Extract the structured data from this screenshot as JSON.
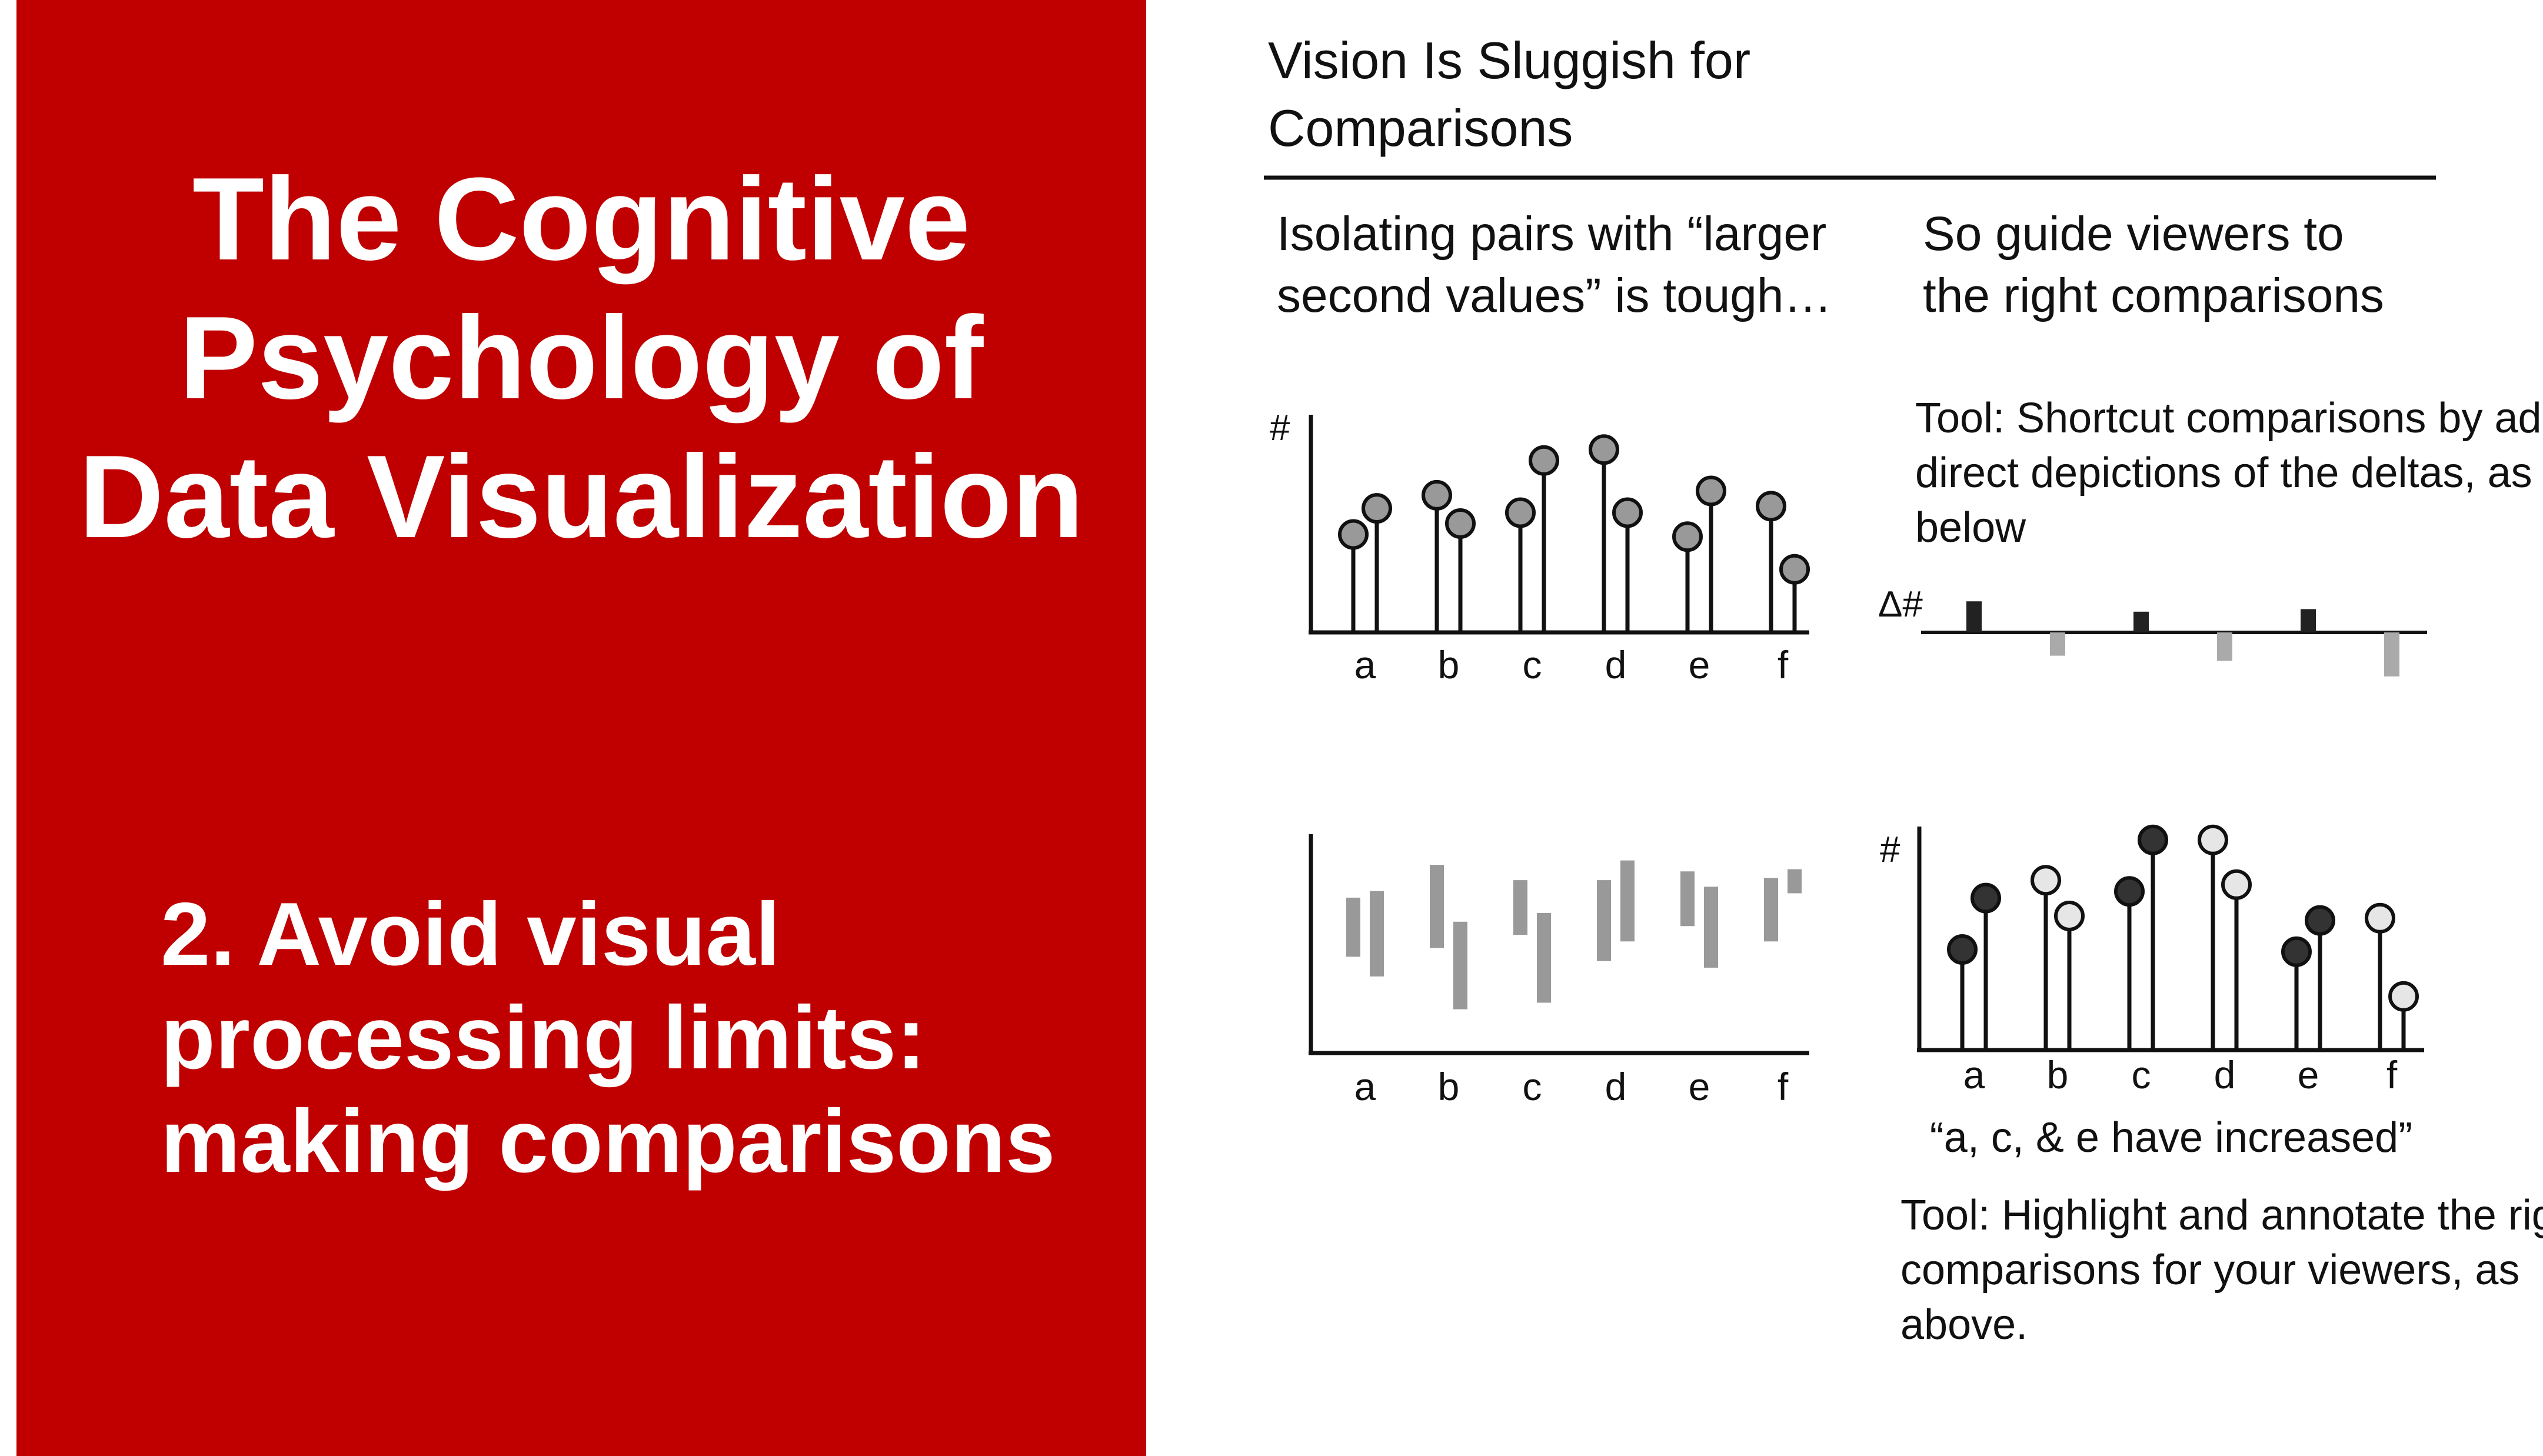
{
  "slide": {
    "title_lines": [
      "The Cognitive",
      "Psychology of",
      "Data Visualization"
    ],
    "subtitle_lines": [
      "2. Avoid visual",
      "processing limits:",
      "making comparisons"
    ]
  },
  "figure": {
    "heading_lines": [
      "Vision Is Sluggish for",
      "Comparisons"
    ],
    "left_caption_lines": [
      "Isolating pairs with “larger",
      "second values” is tough…"
    ],
    "right_caption_lines": [
      "So guide viewers to",
      "the right comparisons"
    ],
    "tool1_lines": [
      "Tool: Shortcut comparisons by adding",
      "direct depictions of the deltas, as",
      "below"
    ],
    "tool2_lines": [
      "Tool: Highlight and annotate the right",
      "comparisons for your viewers, as",
      "above."
    ],
    "quote": "“a, c, & e have increased”",
    "y_symbol": "#",
    "delta_symbol": "Δ#",
    "colors": {
      "accent_red": "#c00000",
      "dot_neutral": "#999999",
      "dot_dark": "#333333",
      "dot_light": "#e6e6e6",
      "bar_gray": "#999999",
      "delta_up": "#222222",
      "delta_down": "#aaaaaa"
    }
  },
  "chart_data": [
    {
      "type": "scatter",
      "title": "",
      "ylabel": "#",
      "categories": [
        "a",
        "b",
        "c",
        "d",
        "e",
        "f"
      ],
      "series": [
        {
          "values": [
            45,
            63,
            55,
            84,
            44,
            58
          ]
        },
        {
          "values": [
            57,
            50,
            79,
            55,
            65,
            29
          ]
        }
      ]
    },
    {
      "type": "bar",
      "title": "",
      "categories": [
        "a",
        "b",
        "c",
        "d",
        "e",
        "f"
      ],
      "series": [
        {
          "ranges": [
            [
              44,
              71
            ],
            [
              48,
              86
            ],
            [
              54,
              79
            ],
            [
              42,
              79
            ],
            [
              58,
              83
            ],
            [
              51,
              80
            ]
          ]
        },
        {
          "ranges": [
            [
              35,
              74
            ],
            [
              20,
              60
            ],
            [
              23,
              64
            ],
            [
              51,
              88
            ],
            [
              39,
              76
            ],
            [
              73,
              84
            ]
          ]
        }
      ]
    },
    {
      "type": "bar",
      "title": "",
      "ylabel": "Δ#",
      "categories": [
        "a",
        "b",
        "c",
        "d",
        "e",
        "f"
      ],
      "values": [
        12,
        -9,
        8,
        -11,
        9,
        -17
      ]
    },
    {
      "type": "scatter",
      "title": "",
      "ylabel": "#",
      "categories": [
        "a",
        "b",
        "c",
        "d",
        "e",
        "f"
      ],
      "highlighted": [
        "a",
        "c",
        "e"
      ],
      "series": [
        {
          "values": [
            45,
            76,
            71,
            94,
            44,
            59
          ]
        },
        {
          "values": [
            68,
            60,
            94,
            74,
            58,
            24
          ]
        }
      ]
    }
  ]
}
